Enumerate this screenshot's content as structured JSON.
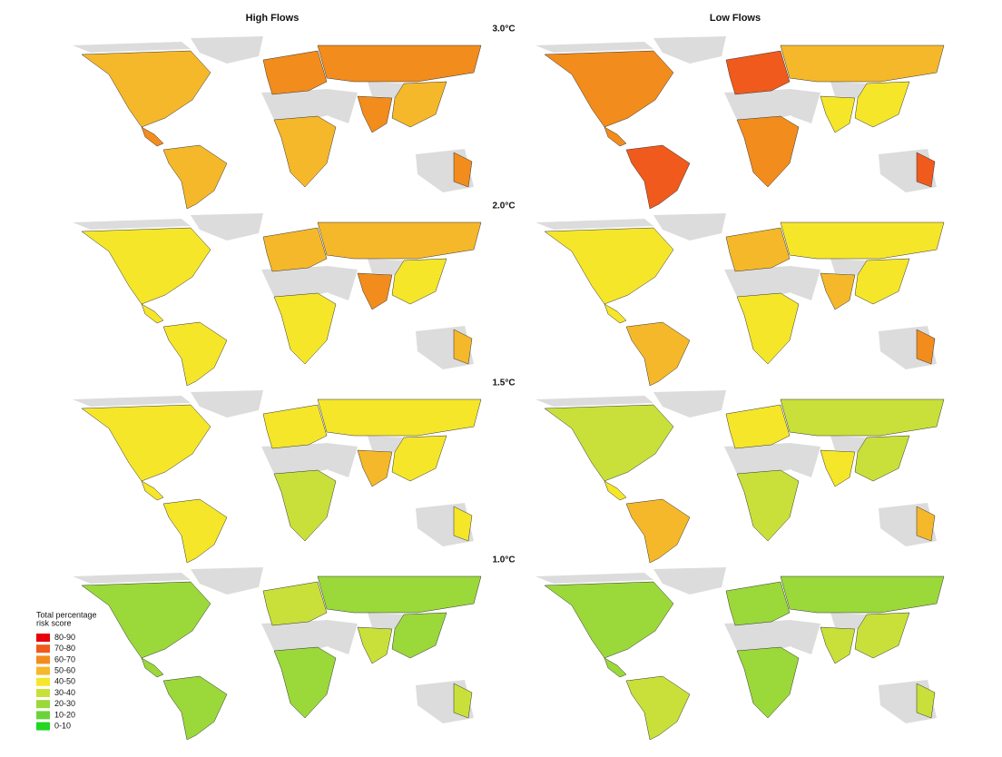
{
  "columns": [
    "High Flows",
    "Low Flows"
  ],
  "rows": [
    "3.0°C",
    "2.0°C",
    "1.5°C",
    "1.0°C"
  ],
  "legend": {
    "title": [
      "Total percentage",
      "risk score"
    ],
    "items": [
      {
        "label": "80-90",
        "color": "#e8000b"
      },
      {
        "label": "70-80",
        "color": "#f05a1c"
      },
      {
        "label": "60-70",
        "color": "#f28c1c"
      },
      {
        "label": "50-60",
        "color": "#f5b82a"
      },
      {
        "label": "40-50",
        "color": "#f5e62a"
      },
      {
        "label": "30-40",
        "color": "#c9e03a"
      },
      {
        "label": "20-30",
        "color": "#9bd83a"
      },
      {
        "label": "10-20",
        "color": "#6bd33a"
      },
      {
        "label": "0-10",
        "color": "#22d622"
      }
    ]
  },
  "panels": [
    {
      "risk": {
        "na": 55,
        "ca": 60,
        "sa": 50,
        "eu": 60,
        "ru": 65,
        "af": 55,
        "sas": 60,
        "eas": 50,
        "au": 65
      }
    },
    {
      "risk": {
        "na": 65,
        "ca": 60,
        "sa": 70,
        "eu": 75,
        "ru": 50,
        "af": 60,
        "sas": 45,
        "eas": 45,
        "au": 70
      }
    },
    {
      "risk": {
        "na": 45,
        "ca": 45,
        "sa": 45,
        "eu": 50,
        "ru": 55,
        "af": 40,
        "sas": 65,
        "eas": 45,
        "au": 55
      }
    },
    {
      "risk": {
        "na": 40,
        "ca": 45,
        "sa": 55,
        "eu": 50,
        "ru": 45,
        "af": 40,
        "sas": 50,
        "eas": 40,
        "au": 65
      }
    },
    {
      "risk": {
        "na": 40,
        "ca": 40,
        "sa": 45,
        "eu": 45,
        "ru": 45,
        "af": 35,
        "sas": 55,
        "eas": 40,
        "au": 45
      }
    },
    {
      "risk": {
        "na": 35,
        "ca": 40,
        "sa": 55,
        "eu": 40,
        "ru": 35,
        "af": 35,
        "sas": 45,
        "eas": 30,
        "au": 55
      }
    },
    {
      "risk": {
        "na": 25,
        "ca": 25,
        "sa": 25,
        "eu": 30,
        "ru": 25,
        "af": 25,
        "sas": 30,
        "eas": 25,
        "au": 30
      }
    },
    {
      "risk": {
        "na": 20,
        "ca": 25,
        "sa": 30,
        "eu": 25,
        "ru": 25,
        "af": 25,
        "sas": 35,
        "eas": 30,
        "au": 35
      }
    }
  ]
}
